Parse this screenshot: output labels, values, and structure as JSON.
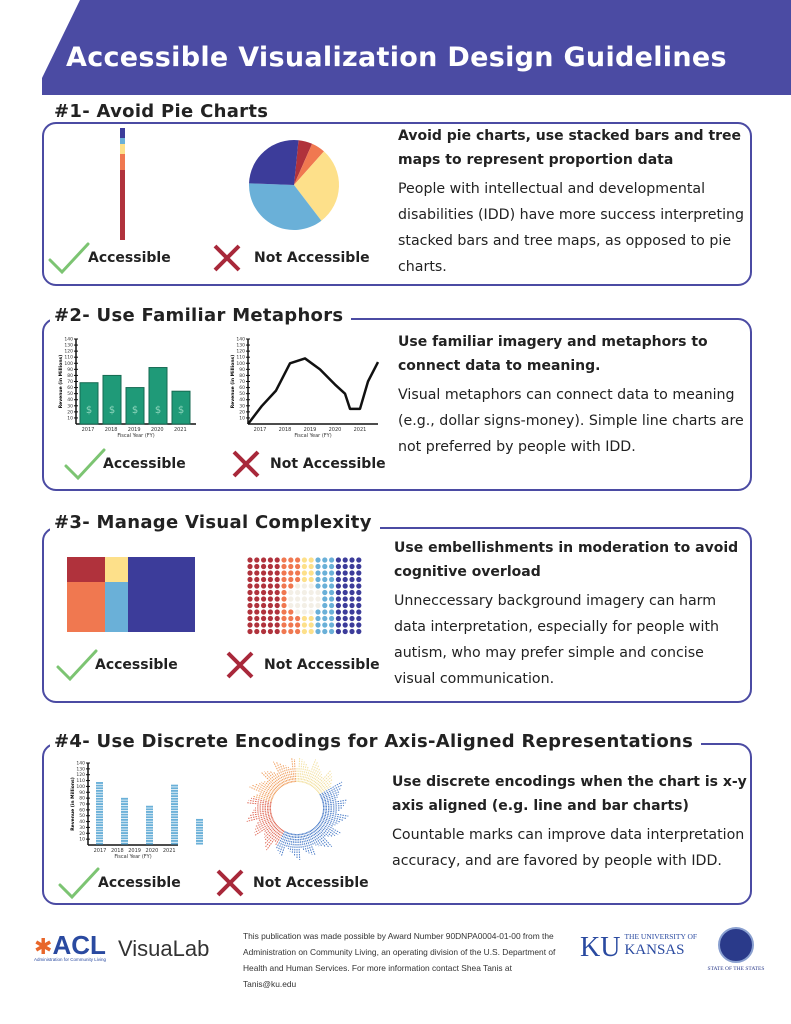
{
  "title": "Accessible Visualization Design Guidelines",
  "colors": {
    "brand": "#4b4ba3",
    "red": "#b0323c",
    "orange": "#f07850",
    "yellow": "#fde08a",
    "lightblue": "#6ab0d8",
    "navy": "#3c3c9a",
    "green": "#1f9a78",
    "check": "#7cc472",
    "cross": "#a8283a"
  },
  "labels": {
    "accessible": "Accessible",
    "not_accessible": "Not Accessible"
  },
  "sections": [
    {
      "title": "#1- Avoid Pie Charts",
      "lead": "Avoid pie charts, use stacked bars and tree maps to represent proportion data",
      "body": "People with intellectual and developmental disabilities (IDD) have more success interpreting stacked bars and tree maps, as opposed to pie charts."
    },
    {
      "title": "#2- Use Familiar Metaphors",
      "lead": "Use familiar imagery and metaphors to connect data to meaning.",
      "body": "Visual metaphors can connect data to meaning (e.g., dollar signs-money). Simple line charts are not preferred by people with IDD."
    },
    {
      "title": "#3- Manage Visual Complexity",
      "lead": "Use embellishments in moderation to avoid cognitive overload",
      "body": "Unneccessary background imagery can harm data interpretation, especially for people with autism, who may prefer simple and concise visual communication."
    },
    {
      "title": "#4- Use Discrete Encodings for Axis-Aligned Representations",
      "lead": "Use discrete encodings when the chart is x-y axis aligned (e.g. line and bar charts)",
      "body": "Countable marks can improve data interpretation accuracy, and are favored by people with IDD."
    }
  ],
  "chart_data": [
    {
      "type": "bar",
      "categories": [
        "2017",
        "2018",
        "2019",
        "2020",
        "2021"
      ],
      "values": [
        68,
        80,
        60,
        93,
        54
      ],
      "ylabel": "Revenue (in Millions)",
      "xlabel": "Fiscal Year (FY)",
      "ylim": [
        0,
        140
      ],
      "marker": "$"
    },
    {
      "type": "line",
      "categories": [
        "2017",
        "2018",
        "2019",
        "2020",
        "2021"
      ],
      "ylabel": "Revenue (in Millions)",
      "xlabel": "Fiscal Year (FY)",
      "ylim": [
        0,
        140
      ]
    },
    {
      "type": "bar",
      "categories": [
        "2017",
        "2018",
        "2019",
        "2020",
        "2021"
      ],
      "values": [
        107,
        80,
        65,
        102,
        44
      ],
      "ylabel": "Revenue (in Millions)",
      "xlabel": "Fiscal Year (FY)",
      "ylim": [
        0,
        140
      ]
    },
    {
      "type": "pie",
      "values": [
        5,
        5,
        28,
        36,
        26
      ]
    }
  ],
  "footer": {
    "text": "This publication was made possible by Award Number 90DNPA0004-01-00 from the Administration on Community Living, an operating division of the U.S. Department of Health and Human Services. For more information contact Shea Tanis at Tanis@ku.edu",
    "acl": "ACL",
    "acl_sub": "Administration for Community Living",
    "visualab": "VisuaLab",
    "ku": "KU",
    "ku_line1": "THE UNIVERSITY OF",
    "ku_line2": "KANSAS",
    "sos": "STATE OF THE STATES"
  }
}
